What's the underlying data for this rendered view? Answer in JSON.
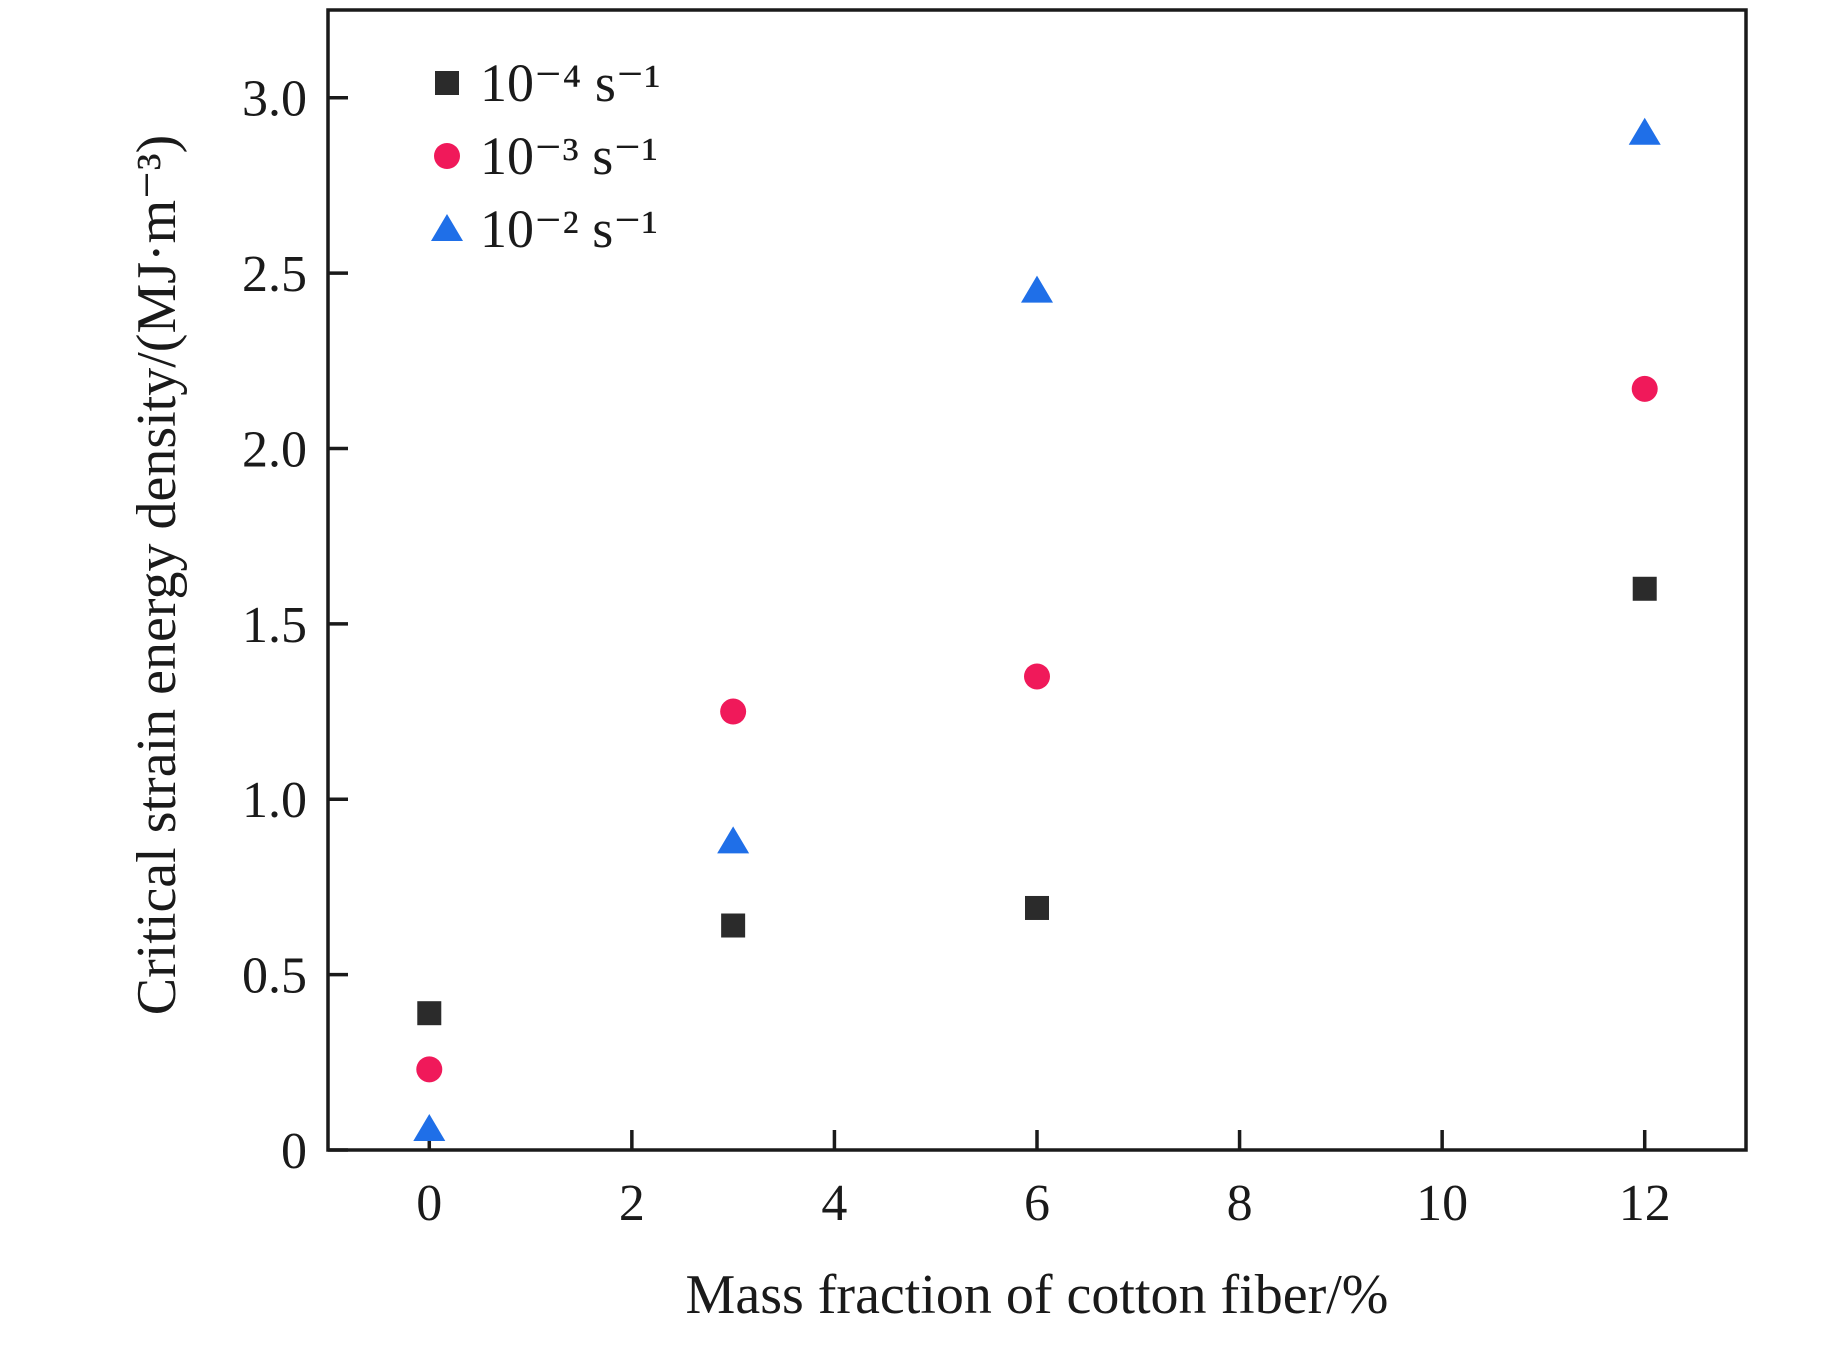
{
  "chart_data": {
    "type": "scatter",
    "xlabel": "Mass fraction of cotton fiber/%",
    "ylabel": "Critical strain energy density/(MJ·m⁻³)",
    "xlim": [
      -1,
      13
    ],
    "ylim": [
      0,
      3.25
    ],
    "xticks": [
      0,
      2,
      4,
      6,
      8,
      10,
      12
    ],
    "xtick_labels": [
      "0",
      "2",
      "4",
      "6",
      "8",
      "10",
      "12"
    ],
    "yticks": [
      0,
      0.5,
      1.0,
      1.5,
      2.0,
      2.5,
      3.0
    ],
    "ytick_labels": [
      "0",
      "0.5",
      "1.0",
      "1.5",
      "2.0",
      "2.5",
      "3.0"
    ],
    "grid": false,
    "legend_position": "top-left",
    "x": [
      0,
      3,
      6,
      12
    ],
    "series": [
      {
        "name": "10⁻⁴ s⁻¹",
        "marker": "square",
        "color": "#2b2b2b",
        "values": [
          0.39,
          0.64,
          0.69,
          1.6
        ]
      },
      {
        "name": "10⁻³ s⁻¹",
        "marker": "circle",
        "color": "#f0195a",
        "values": [
          0.23,
          1.25,
          1.35,
          2.17
        ]
      },
      {
        "name": "10⁻² s⁻¹",
        "marker": "triangle",
        "color": "#1f6fe8",
        "values": [
          0.06,
          0.88,
          2.45,
          2.9
        ]
      }
    ]
  }
}
